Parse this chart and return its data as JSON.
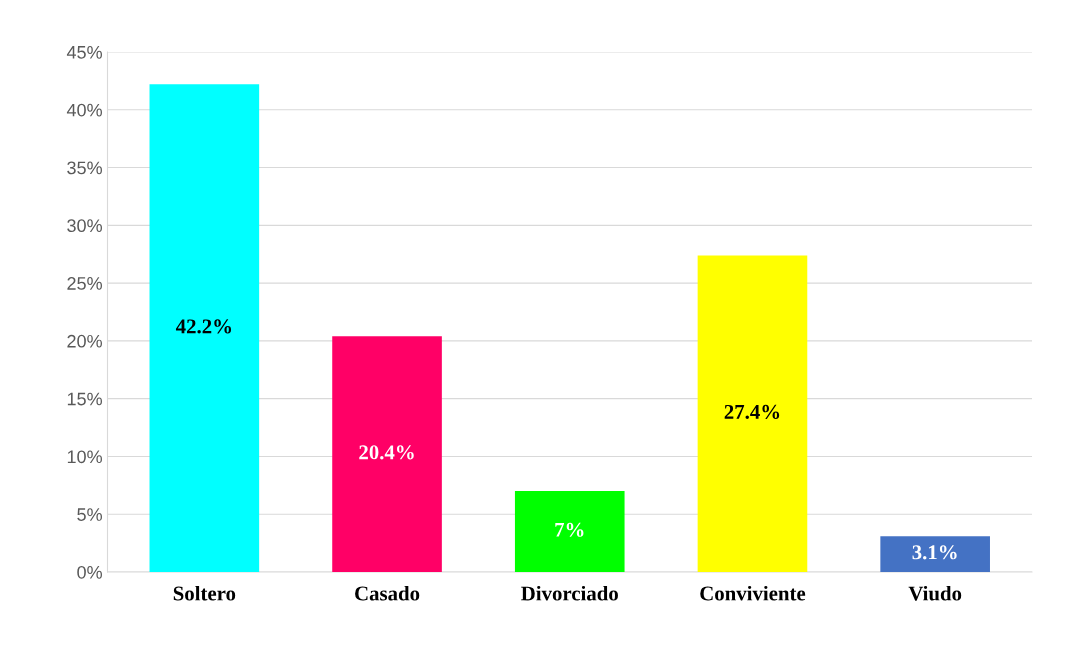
{
  "chart_data": {
    "type": "bar",
    "categories": [
      "Soltero",
      "Casado",
      "Divorciado",
      "Conviviente",
      "Viudo"
    ],
    "values": [
      42.2,
      20.4,
      7,
      27.4,
      3.1
    ],
    "colors": [
      "#00ffff",
      "#ff0066",
      "#00ff00",
      "#ffff00",
      "#4472c4"
    ],
    "value_labels": [
      "42.2%",
      "20.4%",
      "7%",
      "27.4%",
      "3.1%"
    ],
    "ylim": [
      0,
      45
    ],
    "yticks": [
      {
        "value": 0,
        "label": "0%"
      },
      {
        "value": 5,
        "label": "5%"
      },
      {
        "value": 10,
        "label": "10%"
      },
      {
        "value": 15,
        "label": "15%"
      },
      {
        "value": 20,
        "label": "20%"
      },
      {
        "value": 25,
        "label": "25%"
      },
      {
        "value": 30,
        "label": "30%"
      },
      {
        "value": 35,
        "label": "35%"
      },
      {
        "value": 40,
        "label": "40%"
      },
      {
        "value": 45,
        "label": "45%"
      }
    ],
    "grid": "y",
    "legend": false
  }
}
